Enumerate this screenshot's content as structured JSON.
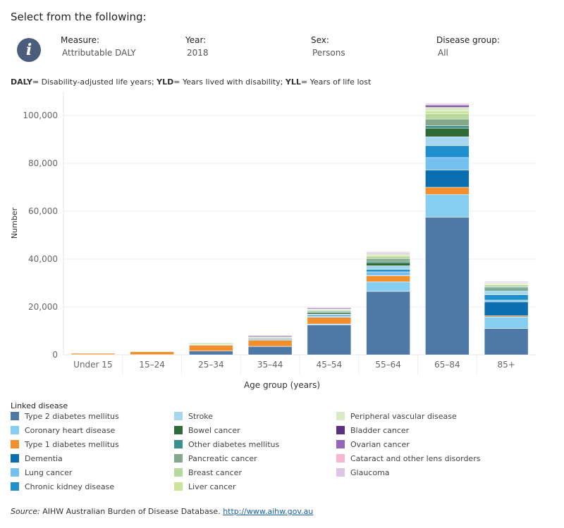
{
  "header": {
    "title": "Select from the following:"
  },
  "info_icon": "info-icon",
  "filters": [
    {
      "label": "Measure:",
      "value": "Attributable DALY"
    },
    {
      "label": "Year:",
      "value": "2018"
    },
    {
      "label": "Sex:",
      "value": "Persons"
    },
    {
      "label": "Disease group:",
      "value": "All"
    }
  ],
  "definitions": {
    "daly_term": "DALY",
    "daly_text": "= Disability-adjusted life years; ",
    "yld_term": "YLD",
    "yld_text": "= Years lived with disability; ",
    "yll_term": "YLL",
    "yll_text": "= Years of life lost"
  },
  "source": {
    "label": "Source:",
    "text": " AIHW Australian Burden of Disease Database. ",
    "link": "http://www.aihw.gov.au"
  },
  "chart_data": {
    "type": "bar",
    "stacked": true,
    "xlabel": "Age group (years)",
    "ylabel": "Number",
    "ylim": [
      0,
      110000
    ],
    "yticks": [
      0,
      20000,
      40000,
      60000,
      80000,
      100000
    ],
    "ytick_labels": [
      "0",
      "20,000",
      "40,000",
      "60,000",
      "80,000",
      "100,000"
    ],
    "grid": true,
    "legend_title": "Linked disease",
    "legend_position": "bottom",
    "categories": [
      "Under 15",
      "15–24",
      "25–34",
      "35–44",
      "45–54",
      "55–64",
      "65–84",
      "85+"
    ],
    "series": [
      {
        "name": "Type 2 diabetes mellitus",
        "color": "#4e79a7",
        "values": [
          100,
          100,
          1600,
          3500,
          12500,
          26500,
          57500,
          11000
        ]
      },
      {
        "name": "Coronary heart disease",
        "color": "#86cdf2",
        "values": [
          0,
          0,
          0,
          50,
          400,
          4000,
          9500,
          4800
        ]
      },
      {
        "name": "Type 1 diabetes mellitus",
        "color": "#f28e2b",
        "values": [
          500,
          1200,
          2400,
          2600,
          2800,
          2500,
          3000,
          500
        ]
      },
      {
        "name": "Dementia",
        "color": "#0a6eb0",
        "values": [
          0,
          0,
          0,
          0,
          0,
          200,
          7200,
          5800
        ]
      },
      {
        "name": "Lung cancer",
        "color": "#74c0ef",
        "values": [
          0,
          0,
          0,
          50,
          400,
          1500,
          5200,
          800
        ]
      },
      {
        "name": "Chronic kidney disease",
        "color": "#1f8fce",
        "values": [
          0,
          0,
          200,
          300,
          400,
          1000,
          5000,
          2200
        ]
      },
      {
        "name": "Stroke",
        "color": "#a6d6f0",
        "values": [
          0,
          0,
          100,
          200,
          500,
          1500,
          3700,
          1700
        ]
      },
      {
        "name": "Bowel cancer",
        "color": "#2f6b36",
        "values": [
          0,
          0,
          50,
          200,
          600,
          1300,
          3600,
          500
        ]
      },
      {
        "name": "Other diabetes mellitus",
        "color": "#3a8f8f",
        "values": [
          0,
          0,
          100,
          200,
          300,
          600,
          1000,
          600
        ]
      },
      {
        "name": "Pancreatic cancer",
        "color": "#86a88a",
        "values": [
          0,
          0,
          0,
          50,
          300,
          1100,
          2800,
          500
        ]
      },
      {
        "name": "Breast cancer",
        "color": "#b7d99b",
        "values": [
          0,
          0,
          100,
          300,
          500,
          1000,
          2200,
          800
        ]
      },
      {
        "name": "Liver cancer",
        "color": "#cbe39a",
        "values": [
          0,
          0,
          0,
          50,
          200,
          500,
          1200,
          200
        ]
      },
      {
        "name": "Peripheral vascular disease",
        "color": "#d9ebc6",
        "values": [
          0,
          0,
          0,
          50,
          200,
          500,
          1500,
          500
        ]
      },
      {
        "name": "Bladder cancer",
        "color": "#5c2e84",
        "values": [
          0,
          0,
          0,
          0,
          50,
          200,
          600,
          150
        ]
      },
      {
        "name": "Ovarian cancer",
        "color": "#9467bd",
        "values": [
          0,
          0,
          0,
          50,
          100,
          200,
          500,
          100
        ]
      },
      {
        "name": "Cataract and other lens disorders",
        "color": "#f7b6d2",
        "values": [
          0,
          0,
          0,
          0,
          0,
          50,
          200,
          100
        ]
      },
      {
        "name": "Glaucoma",
        "color": "#dcc6e4",
        "values": [
          0,
          0,
          0,
          0,
          0,
          50,
          100,
          50
        ]
      }
    ]
  }
}
